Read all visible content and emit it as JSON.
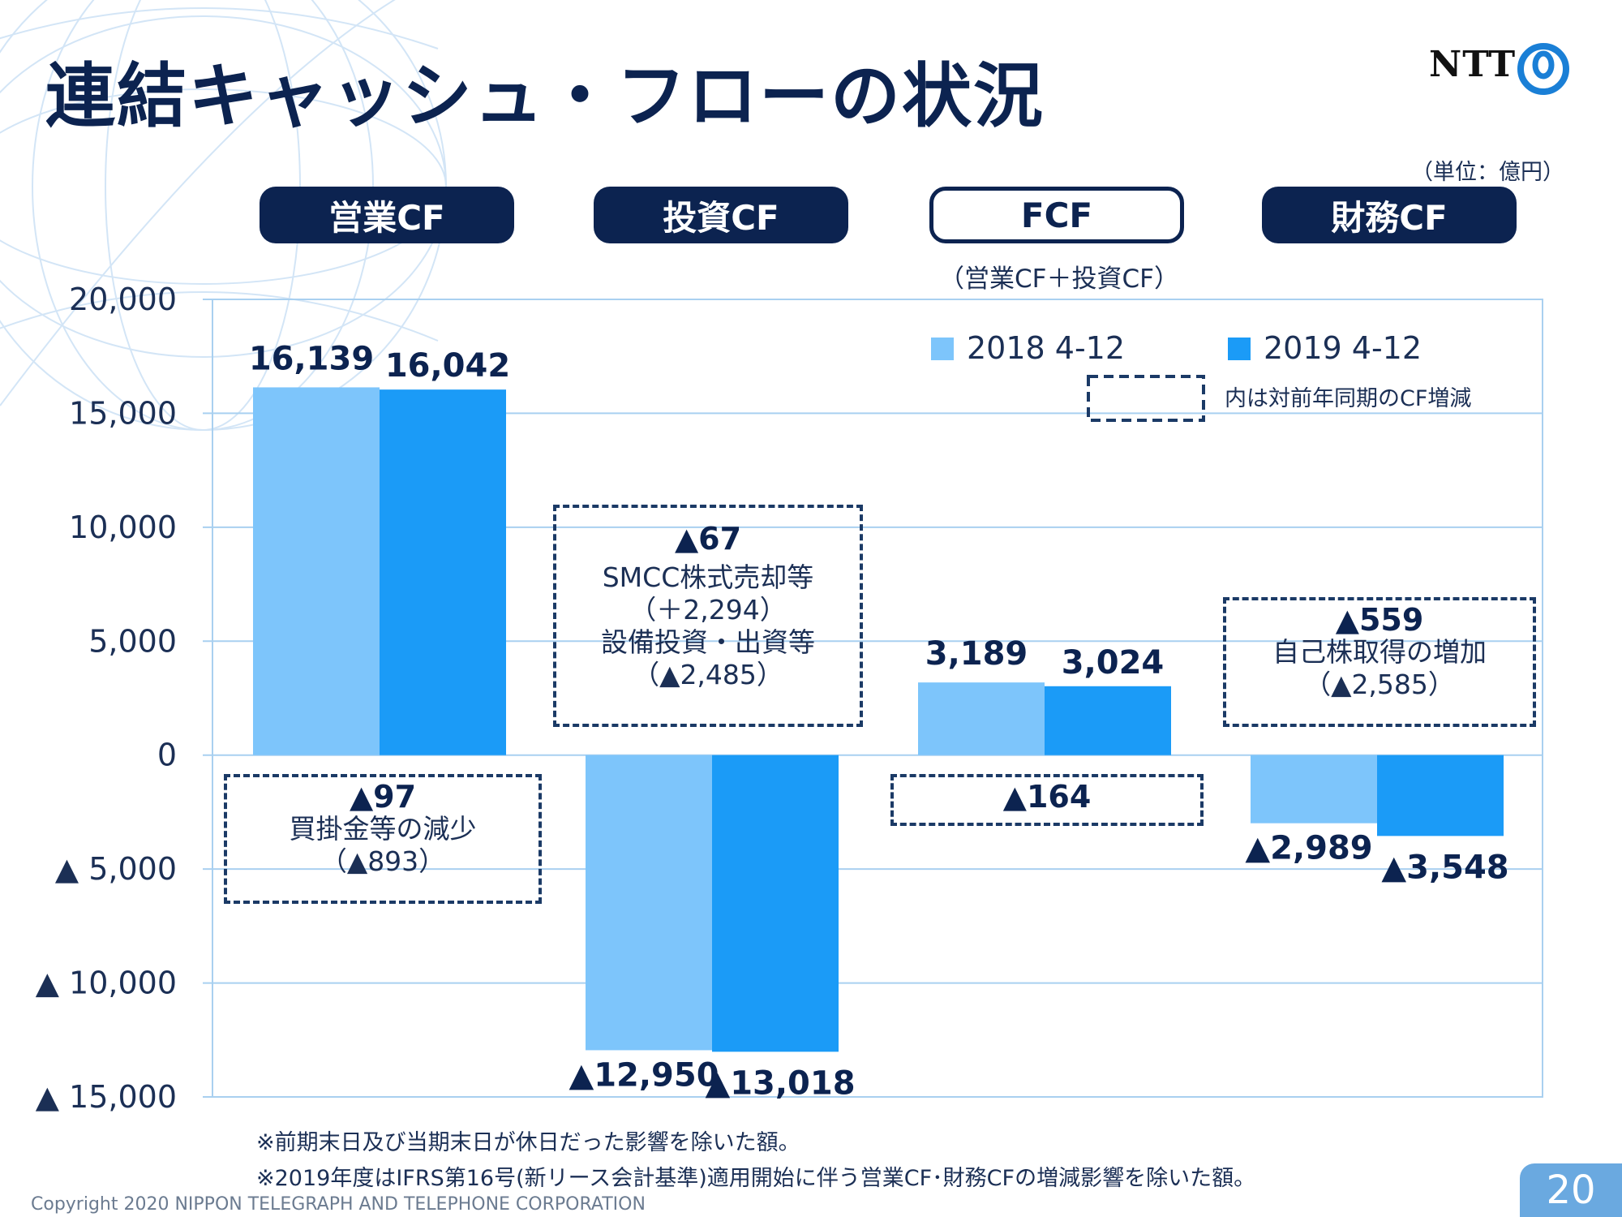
{
  "title": "連結キャッシュ・フローの状況",
  "logo": {
    "text": "NTT",
    "mark_icon": "ntt-ring-logo-icon"
  },
  "unit_label": "（単位：億円）",
  "groups": [
    {
      "label": "営業CF",
      "style": "filled"
    },
    {
      "label": "投資CF",
      "style": "filled"
    },
    {
      "label": "FCF",
      "style": "outline",
      "sublabel": "（営業CF＋投資CF）"
    },
    {
      "label": "財務CF",
      "style": "filled"
    }
  ],
  "chart_data": {
    "type": "bar",
    "categories": [
      "営業CF",
      "投資CF",
      "FCF",
      "財務CF"
    ],
    "series": [
      {
        "name": "2018 4-12",
        "color": "#7dc5fb",
        "values": [
          16139,
          -12950,
          3189,
          -2989
        ]
      },
      {
        "name": "2019 4-12",
        "color": "#1b9bf7",
        "values": [
          16042,
          -13018,
          3024,
          -3548
        ]
      }
    ],
    "value_labels": [
      [
        "16,139",
        "16,042"
      ],
      [
        "▲12,950",
        "▲13,018"
      ],
      [
        "3,189",
        "3,024"
      ],
      [
        "▲2,989",
        "▲3,548"
      ]
    ],
    "ylim": [
      -15000,
      20000
    ],
    "y_ticks": [
      20000,
      15000,
      10000,
      5000,
      0,
      -5000,
      -10000,
      -15000
    ],
    "y_tick_labels": [
      "20,000",
      "15,000",
      "10,000",
      "5,000",
      "0",
      "▲ 5,000",
      "▲ 10,000",
      "▲ 15,000"
    ],
    "grid": true,
    "legend_position": "top-right",
    "legend_note": "内は対前年同期のCF増減"
  },
  "annotations": [
    {
      "id": "operating",
      "change": "▲97",
      "lines": [
        "買掛金等の減少",
        "（▲893）"
      ]
    },
    {
      "id": "investing",
      "change": "▲67",
      "lines": [
        "SMCC株式売却等",
        "（＋2,294）",
        "設備投資・出資等",
        "（▲2,485）"
      ]
    },
    {
      "id": "fcf",
      "change": "▲164",
      "lines": []
    },
    {
      "id": "financing",
      "change": "▲559",
      "lines": [
        "自己株取得の増加",
        "（▲2,585）"
      ]
    }
  ],
  "footnotes": [
    "※前期末日及び当期末日が休日だった影響を除いた額。",
    "※2019年度はIFRS第16号(新リース会計基準)適用開始に伴う営業CF･財務CFの増減影響を除いた額。"
  ],
  "copyright": "Copyright 2020 NIPPON TELEGRAPH AND TELEPHONE CORPORATION",
  "page_number": "20"
}
